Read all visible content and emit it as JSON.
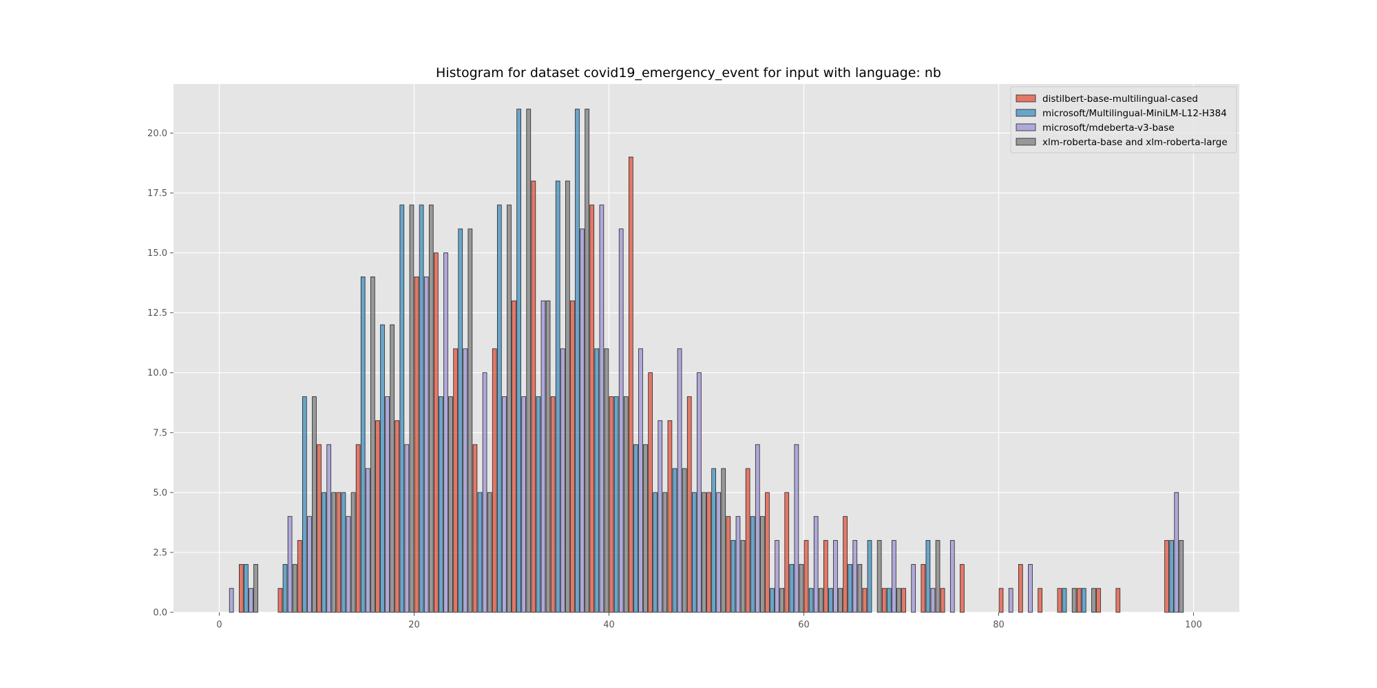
{
  "chart_data": {
    "type": "bar",
    "title": "Histogram for dataset covid19_emergency_event for input with language: nb",
    "xlabel": "",
    "ylabel": "",
    "xlim": [
      -4.7,
      104.7
    ],
    "ylim": [
      0,
      22.05
    ],
    "xticks": [
      "0",
      "20",
      "40",
      "60",
      "80",
      "100"
    ],
    "yticks": [
      "0.0",
      "2.5",
      "5.0",
      "7.5",
      "10.0",
      "12.5",
      "15.0",
      "17.5",
      "20.0"
    ],
    "grid": true,
    "legend_position": "top-right",
    "bin_width": 2.0,
    "bin_starts": [
      0,
      2,
      6,
      8,
      10,
      12,
      14,
      16,
      18,
      20,
      22,
      24,
      26,
      28,
      30,
      32,
      34,
      36,
      38,
      40,
      42,
      44,
      46,
      48,
      50,
      52,
      54,
      56,
      58,
      60,
      62,
      64,
      66,
      68,
      70,
      72,
      74,
      76,
      80,
      82,
      84,
      86,
      88,
      90,
      92,
      96,
      97
    ],
    "series": [
      {
        "name": "distilbert-base-multilingual-cased",
        "color": "#E24A33",
        "values": [
          0,
          2,
          1,
          3,
          7,
          5,
          7,
          8,
          8,
          14,
          15,
          11,
          7,
          11,
          13,
          18,
          9,
          13,
          17,
          9,
          19,
          10,
          8,
          9,
          5,
          4,
          6,
          5,
          5,
          3,
          3,
          4,
          1,
          1,
          1,
          2,
          1,
          2,
          1,
          2,
          1,
          1,
          1,
          1,
          1,
          0,
          3
        ]
      },
      {
        "name": "microsoft/Multilingual-MiniLM-L12-H384",
        "color": "#348ABD",
        "values": [
          0,
          2,
          2,
          9,
          5,
          5,
          14,
          12,
          17,
          17,
          9,
          16,
          5,
          17,
          21,
          9,
          18,
          21,
          11,
          9,
          7,
          5,
          6,
          5,
          6,
          3,
          4,
          1,
          2,
          1,
          1,
          2,
          3,
          1,
          0,
          3,
          0,
          0,
          0,
          0,
          0,
          1,
          1,
          0,
          0,
          0,
          3
        ]
      },
      {
        "name": "microsoft/mdeberta-v3-base",
        "color": "#988ED5",
        "values": [
          1,
          1,
          4,
          4,
          7,
          4,
          6,
          9,
          7,
          14,
          15,
          11,
          10,
          9,
          9,
          13,
          11,
          16,
          17,
          16,
          11,
          8,
          11,
          10,
          5,
          4,
          7,
          3,
          7,
          4,
          3,
          3,
          0,
          3,
          2,
          1,
          3,
          0,
          1,
          2,
          0,
          0,
          0,
          0,
          0,
          0,
          5
        ]
      },
      {
        "name": "xlm-roberta-base and xlm-roberta-large",
        "color": "#777777",
        "values": [
          0,
          2,
          2,
          9,
          5,
          5,
          14,
          12,
          17,
          17,
          9,
          16,
          5,
          17,
          21,
          13,
          18,
          21,
          11,
          9,
          7,
          5,
          6,
          5,
          6,
          3,
          4,
          1,
          2,
          1,
          1,
          2,
          3,
          1,
          0,
          3,
          0,
          0,
          0,
          0,
          0,
          1,
          1,
          0,
          0,
          0,
          3
        ]
      }
    ]
  }
}
